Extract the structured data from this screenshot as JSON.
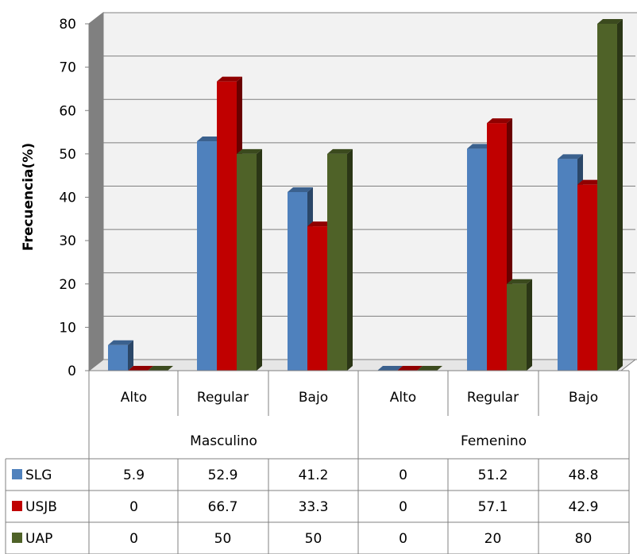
{
  "chart_data": {
    "type": "bar",
    "ylabel": "Frecuencia(%)",
    "ylim": [
      0,
      80
    ],
    "yticks": [
      0,
      10,
      20,
      30,
      40,
      50,
      60,
      70,
      80
    ],
    "grid": true,
    "groups": [
      {
        "label": "Masculino",
        "categories": [
          "Alto",
          "Regular",
          "Bajo"
        ]
      },
      {
        "label": "Femenino",
        "categories": [
          "Alto",
          "Regular",
          "Bajo"
        ]
      }
    ],
    "categories": [
      "Alto",
      "Regular",
      "Bajo",
      "Alto",
      "Regular",
      "Bajo"
    ],
    "series": [
      {
        "name": "SLG",
        "color": "#4f81bd",
        "values": [
          5.9,
          52.9,
          41.2,
          0,
          51.2,
          48.8
        ]
      },
      {
        "name": "USJB",
        "color": "#c00000",
        "values": [
          0,
          66.7,
          33.3,
          0,
          57.1,
          42.9
        ]
      },
      {
        "name": "UAP",
        "color": "#4f6228",
        "values": [
          0,
          50,
          50,
          0,
          20,
          80
        ]
      }
    ],
    "table": {
      "rows": [
        {
          "series": "SLG",
          "cells": [
            "5.9",
            "52.9",
            "41.2",
            "0",
            "51.2",
            "48.8"
          ]
        },
        {
          "series": "USJB",
          "cells": [
            "0",
            "66.7",
            "33.3",
            "0",
            "57.1",
            "42.9"
          ]
        },
        {
          "series": "UAP",
          "cells": [
            "0",
            "50",
            "50",
            "0",
            "20",
            "80"
          ]
        }
      ]
    }
  }
}
